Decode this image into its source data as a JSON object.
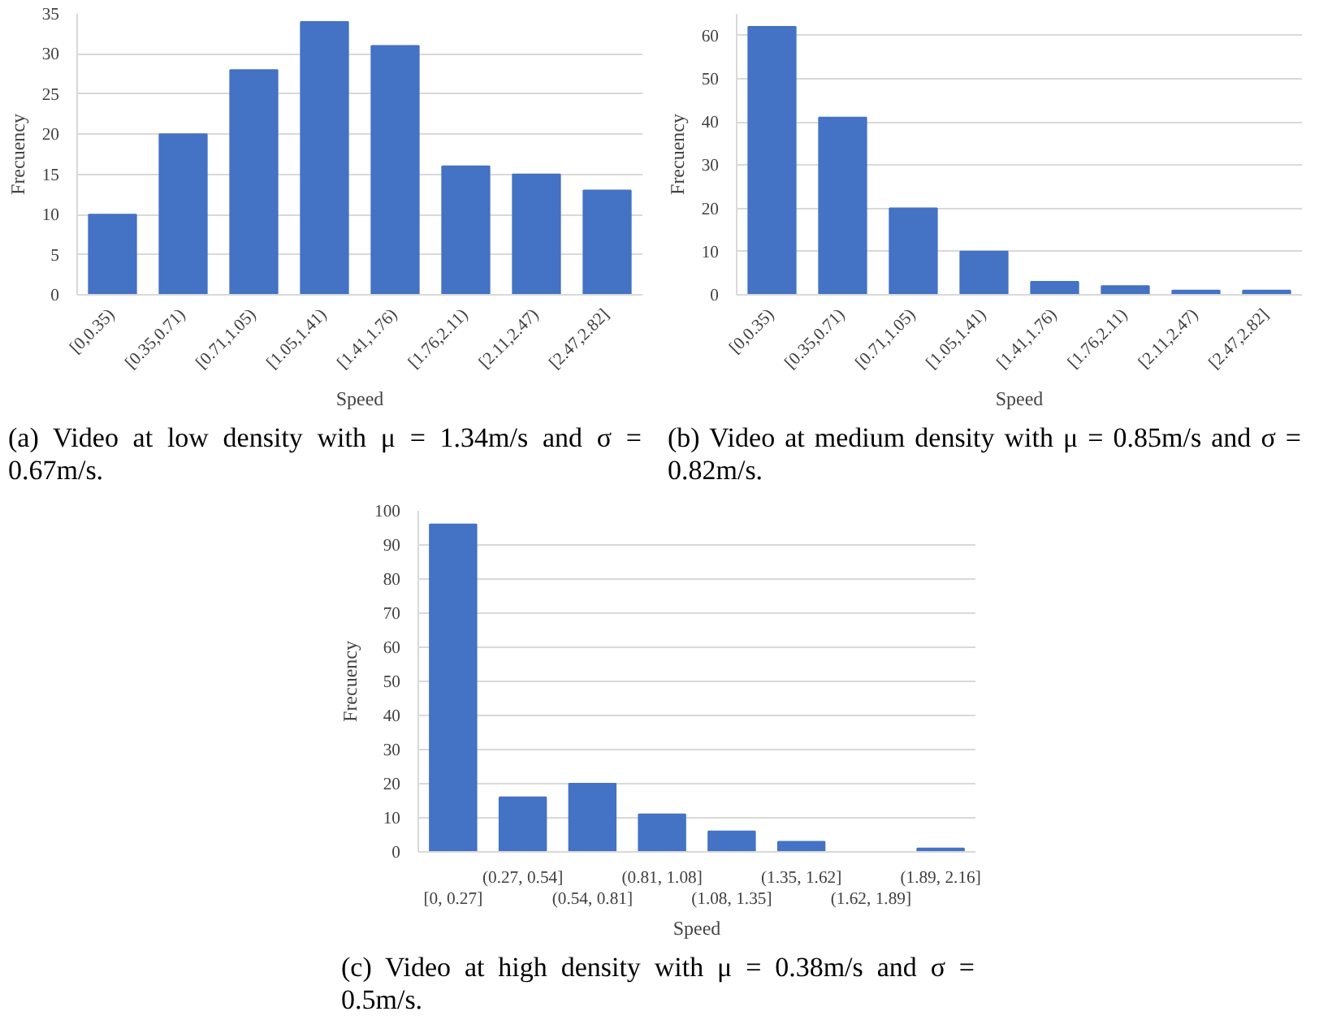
{
  "chart_data": [
    {
      "type": "bar",
      "xlabel": "Speed",
      "ylabel": "Frecuency",
      "categories": [
        "[0,0.35)",
        "[0.35,0.71)",
        "[0.71,1.05)",
        "[1.05,1.41)",
        "[1.41,1.76)",
        "[1.76,2.11)",
        "[2.11,2.47)",
        "[2.47,2.82]"
      ],
      "values": [
        10,
        20,
        28,
        34,
        31,
        16,
        15,
        13
      ],
      "color": "#4472c4",
      "ylim": [
        0,
        35
      ],
      "yticks": [
        0,
        5,
        10,
        15,
        20,
        25,
        30,
        35
      ],
      "grid": "y",
      "annotations": [
        "(a) Video at low density with μ = 1.34m/s and σ = 0.67m/s."
      ]
    },
    {
      "type": "bar",
      "xlabel": "Speed",
      "ylabel": "Frecuency",
      "categories": [
        "[0,0.35)",
        "[0.35,0.71)",
        "[0.71,1.05)",
        "[1.05,1.41)",
        "[1.41,1.76)",
        "[1.76,2.11)",
        "[2.11,2.47)",
        "[2.47,2.82]"
      ],
      "values": [
        62,
        41,
        20,
        10,
        3,
        2,
        1,
        1
      ],
      "color": "#4472c4",
      "ylim": [
        0,
        65
      ],
      "yticks": [
        0,
        10,
        20,
        30,
        40,
        50,
        60
      ],
      "grid": "y",
      "annotations": [
        "(b) Video at medium density with μ = 0.85m/s and σ = 0.82m/s."
      ]
    },
    {
      "type": "bar",
      "xlabel": "Speed",
      "ylabel": "Frecuency",
      "categories": [
        "[0, 0.27]",
        "(0.27, 0.54]",
        "(0.54, 0.81]",
        "(0.81, 1.08]",
        "(1.08, 1.35]",
        "(1.35, 1.62]",
        "(1.62, 1.89]",
        "(1.89, 2.16]"
      ],
      "values": [
        96,
        16,
        20,
        11,
        6,
        3,
        0,
        1
      ],
      "color": "#4472c4",
      "ylim": [
        0,
        100
      ],
      "yticks": [
        0,
        10,
        20,
        30,
        40,
        50,
        60,
        70,
        80,
        90,
        100
      ],
      "grid": "y",
      "annotations": [
        "(c) Video at high density with μ = 0.38m/s and σ = 0.5m/s."
      ]
    }
  ]
}
